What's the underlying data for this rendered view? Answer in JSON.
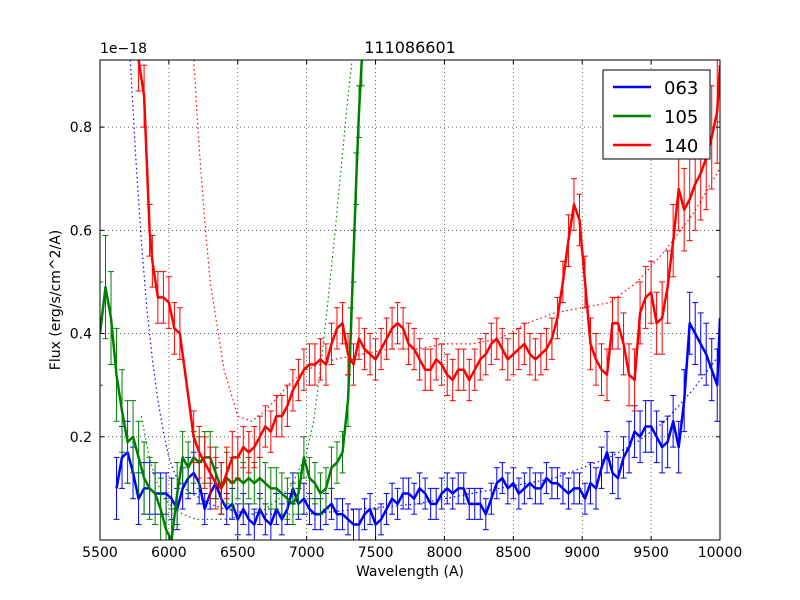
{
  "chart_data": {
    "type": "line",
    "title": "111086601",
    "xlabel": "Wavelength (A)",
    "ylabel": "Flux (erg/s/cm^2/A)",
    "offset_label": "1e−18",
    "xlim": [
      5500,
      10000
    ],
    "ylim": [
      0.0,
      0.93
    ],
    "x_ticks": [
      5500,
      6000,
      6500,
      7000,
      7500,
      8000,
      8500,
      9000,
      9500,
      10000
    ],
    "x_tick_labels": [
      "5500",
      "6000",
      "6500",
      "7000",
      "7500",
      "8000",
      "8500",
      "9000",
      "9500",
      "10000"
    ],
    "y_ticks": [
      0.2,
      0.4,
      0.6,
      0.8
    ],
    "y_tick_labels": [
      "0.2",
      "0.4",
      "0.6",
      "0.8"
    ],
    "grid": true,
    "legend_position": "top-right",
    "series": [
      {
        "name": "063",
        "color": "#0000ff",
        "x": [
          5620,
          5660,
          5700,
          5740,
          5780,
          5820,
          5860,
          5900,
          5940,
          5980,
          6020,
          6060,
          6100,
          6140,
          6180,
          6220,
          6260,
          6300,
          6340,
          6380,
          6420,
          6460,
          6500,
          6540,
          6580,
          6620,
          6660,
          6700,
          6740,
          6780,
          6820,
          6860,
          6900,
          6940,
          6980,
          7020,
          7060,
          7100,
          7140,
          7180,
          7220,
          7260,
          7300,
          7340,
          7380,
          7420,
          7460,
          7500,
          7540,
          7580,
          7620,
          7660,
          7700,
          7740,
          7780,
          7820,
          7860,
          7900,
          7940,
          7980,
          8020,
          8060,
          8100,
          8140,
          8180,
          8220,
          8260,
          8300,
          8340,
          8380,
          8420,
          8460,
          8500,
          8540,
          8580,
          8620,
          8660,
          8700,
          8740,
          8780,
          8820,
          8860,
          8900,
          8940,
          8980,
          9020,
          9060,
          9100,
          9140,
          9180,
          9220,
          9260,
          9300,
          9340,
          9380,
          9420,
          9460,
          9500,
          9540,
          9580,
          9620,
          9660,
          9700,
          9740,
          9780,
          9820,
          9860,
          9900,
          9940,
          9980,
          10000
        ],
        "y": [
          0.1,
          0.16,
          0.17,
          0.13,
          0.08,
          0.1,
          0.1,
          0.09,
          0.09,
          0.09,
          0.08,
          0.06,
          0.1,
          0.12,
          0.13,
          0.11,
          0.06,
          0.09,
          0.11,
          0.08,
          0.06,
          0.07,
          0.04,
          0.06,
          0.04,
          0.03,
          0.06,
          0.04,
          0.03,
          0.06,
          0.04,
          0.06,
          0.1,
          0.07,
          0.08,
          0.06,
          0.05,
          0.05,
          0.06,
          0.07,
          0.05,
          0.05,
          0.04,
          0.03,
          0.03,
          0.05,
          0.06,
          0.03,
          0.04,
          0.06,
          0.08,
          0.07,
          0.09,
          0.09,
          0.08,
          0.1,
          0.09,
          0.07,
          0.07,
          0.09,
          0.1,
          0.09,
          0.1,
          0.1,
          0.07,
          0.07,
          0.07,
          0.05,
          0.08,
          0.11,
          0.12,
          0.1,
          0.11,
          0.09,
          0.1,
          0.11,
          0.1,
          0.1,
          0.12,
          0.11,
          0.11,
          0.1,
          0.09,
          0.1,
          0.1,
          0.08,
          0.11,
          0.1,
          0.14,
          0.17,
          0.13,
          0.12,
          0.16,
          0.18,
          0.21,
          0.2,
          0.22,
          0.22,
          0.2,
          0.18,
          0.19,
          0.23,
          0.18,
          0.27,
          0.42,
          0.4,
          0.38,
          0.36,
          0.33,
          0.3,
          0.43
        ],
        "err": [
          0.06,
          0.06,
          0.06,
          0.05,
          0.05,
          0.05,
          0.05,
          0.04,
          0.04,
          0.04,
          0.04,
          0.04,
          0.04,
          0.04,
          0.04,
          0.04,
          0.03,
          0.03,
          0.03,
          0.03,
          0.03,
          0.03,
          0.03,
          0.03,
          0.03,
          0.03,
          0.03,
          0.03,
          0.03,
          0.03,
          0.03,
          0.03,
          0.03,
          0.03,
          0.03,
          0.03,
          0.03,
          0.03,
          0.03,
          0.03,
          0.03,
          0.03,
          0.03,
          0.03,
          0.03,
          0.03,
          0.03,
          0.03,
          0.03,
          0.03,
          0.03,
          0.03,
          0.03,
          0.03,
          0.03,
          0.03,
          0.03,
          0.03,
          0.03,
          0.03,
          0.03,
          0.03,
          0.03,
          0.03,
          0.03,
          0.03,
          0.03,
          0.03,
          0.03,
          0.03,
          0.03,
          0.03,
          0.03,
          0.03,
          0.03,
          0.03,
          0.03,
          0.03,
          0.03,
          0.03,
          0.03,
          0.03,
          0.03,
          0.03,
          0.03,
          0.03,
          0.04,
          0.04,
          0.04,
          0.04,
          0.04,
          0.04,
          0.04,
          0.05,
          0.05,
          0.05,
          0.05,
          0.05,
          0.05,
          0.05,
          0.05,
          0.05,
          0.05,
          0.06,
          0.06,
          0.06,
          0.06,
          0.06,
          0.06,
          0.07,
          0.08
        ],
        "fit": {
          "x": [
            5720,
            5760,
            5800,
            5840,
            5880,
            5920,
            5960,
            6000,
            6040,
            6080,
            6120,
            6160,
            6200,
            6300,
            6400,
            6500,
            6600,
            6700,
            6800,
            7000,
            7200,
            7400,
            7600,
            7800,
            8000,
            8200,
            8400,
            8600,
            8800,
            9000,
            9200,
            9400,
            9600,
            9800,
            10000
          ],
          "y": [
            0.93,
            0.74,
            0.58,
            0.45,
            0.35,
            0.27,
            0.21,
            0.16,
            0.13,
            0.11,
            0.1,
            0.09,
            0.085,
            0.07,
            0.06,
            0.055,
            0.05,
            0.05,
            0.05,
            0.05,
            0.055,
            0.06,
            0.065,
            0.07,
            0.08,
            0.09,
            0.1,
            0.11,
            0.12,
            0.14,
            0.16,
            0.19,
            0.23,
            0.29,
            0.36
          ]
        }
      },
      {
        "name": "105",
        "color": "#008000",
        "x": [
          5500,
          5540,
          5580,
          5620,
          5660,
          5700,
          5740,
          5780,
          5820,
          5860,
          5900,
          5940,
          5980,
          6020,
          6060,
          6100,
          6140,
          6180,
          6220,
          6260,
          6300,
          6340,
          6380,
          6420,
          6460,
          6500,
          6540,
          6580,
          6620,
          6660,
          6700,
          6740,
          6780,
          6820,
          6860,
          6900,
          6940,
          6980,
          7020,
          7060,
          7100,
          7140,
          7180,
          7220,
          7260,
          7300,
          7320,
          7340,
          7360,
          7380,
          7400,
          7410
        ],
        "y": [
          0.4,
          0.49,
          0.43,
          0.32,
          0.25,
          0.19,
          0.2,
          0.16,
          0.12,
          0.1,
          0.09,
          0.06,
          0.02,
          0.0,
          0.09,
          0.16,
          0.14,
          0.16,
          0.15,
          0.16,
          0.16,
          0.13,
          0.1,
          0.12,
          0.11,
          0.12,
          0.11,
          0.12,
          0.11,
          0.12,
          0.11,
          0.1,
          0.1,
          0.09,
          0.08,
          0.07,
          0.09,
          0.16,
          0.12,
          0.11,
          0.09,
          0.1,
          0.14,
          0.15,
          0.17,
          0.27,
          0.4,
          0.55,
          0.7,
          0.83,
          0.93,
          0.99
        ],
        "err": [
          0.1,
          0.1,
          0.09,
          0.09,
          0.08,
          0.08,
          0.07,
          0.07,
          0.07,
          0.06,
          0.06,
          0.06,
          0.06,
          0.06,
          0.06,
          0.05,
          0.05,
          0.05,
          0.05,
          0.05,
          0.05,
          0.05,
          0.05,
          0.05,
          0.05,
          0.04,
          0.04,
          0.04,
          0.04,
          0.04,
          0.04,
          0.04,
          0.04,
          0.04,
          0.04,
          0.04,
          0.04,
          0.04,
          0.04,
          0.04,
          0.04,
          0.04,
          0.04,
          0.04,
          0.04,
          0.05,
          0.05,
          0.05,
          0.05,
          0.05,
          0.05,
          0.05
        ],
        "fit": {
          "x": [
            5800,
            5850,
            5900,
            5950,
            6000,
            6050,
            6100,
            6200,
            6300,
            6400,
            6500,
            6600,
            6700,
            6800,
            6900,
            7000,
            7050,
            7100,
            7150,
            7200,
            7250,
            7300,
            7330
          ],
          "y": [
            0.24,
            0.17,
            0.12,
            0.09,
            0.07,
            0.06,
            0.05,
            0.04,
            0.04,
            0.04,
            0.045,
            0.05,
            0.06,
            0.08,
            0.11,
            0.17,
            0.23,
            0.33,
            0.45,
            0.58,
            0.72,
            0.86,
            0.93
          ]
        }
      },
      {
        "name": "140",
        "color": "#ff0000",
        "x": [
          5780,
          5820,
          5860,
          5880,
          5920,
          5960,
          6000,
          6040,
          6080,
          6180,
          6220,
          6260,
          6300,
          6340,
          6380,
          6420,
          6460,
          6500,
          6540,
          6580,
          6620,
          6660,
          6700,
          6740,
          6780,
          6820,
          6860,
          6900,
          6940,
          6980,
          7020,
          7060,
          7100,
          7140,
          7180,
          7220,
          7260,
          7300,
          7340,
          7380,
          7420,
          7460,
          7500,
          7540,
          7580,
          7620,
          7660,
          7700,
          7740,
          7780,
          7820,
          7860,
          7900,
          7940,
          7980,
          8020,
          8060,
          8100,
          8140,
          8180,
          8220,
          8260,
          8300,
          8340,
          8380,
          8420,
          8460,
          8500,
          8540,
          8580,
          8620,
          8660,
          8700,
          8740,
          8780,
          8820,
          8860,
          8900,
          8940,
          8980,
          9020,
          9060,
          9100,
          9140,
          9180,
          9220,
          9260,
          9300,
          9340,
          9380,
          9420,
          9460,
          9500,
          9540,
          9580,
          9620,
          9660,
          9700,
          9740,
          9780,
          9820,
          9860,
          9900,
          9940,
          9980,
          10000
        ],
        "y": [
          0.93,
          0.86,
          0.6,
          0.54,
          0.47,
          0.47,
          0.46,
          0.41,
          0.4,
          0.2,
          0.17,
          0.15,
          0.13,
          0.11,
          0.1,
          0.13,
          0.16,
          0.16,
          0.18,
          0.17,
          0.18,
          0.2,
          0.22,
          0.21,
          0.24,
          0.24,
          0.26,
          0.29,
          0.31,
          0.33,
          0.34,
          0.34,
          0.35,
          0.34,
          0.38,
          0.41,
          0.42,
          0.36,
          0.34,
          0.39,
          0.37,
          0.36,
          0.35,
          0.37,
          0.39,
          0.41,
          0.42,
          0.41,
          0.38,
          0.37,
          0.35,
          0.33,
          0.33,
          0.35,
          0.34,
          0.32,
          0.31,
          0.33,
          0.33,
          0.31,
          0.33,
          0.35,
          0.36,
          0.38,
          0.39,
          0.37,
          0.35,
          0.36,
          0.37,
          0.38,
          0.36,
          0.35,
          0.36,
          0.37,
          0.39,
          0.43,
          0.5,
          0.58,
          0.65,
          0.62,
          0.5,
          0.38,
          0.35,
          0.33,
          0.32,
          0.42,
          0.42,
          0.38,
          0.32,
          0.31,
          0.44,
          0.47,
          0.48,
          0.42,
          0.43,
          0.49,
          0.58,
          0.68,
          0.64,
          0.66,
          0.69,
          0.71,
          0.74,
          0.78,
          0.83,
          0.92
        ],
        "err": [
          0.06,
          0.06,
          0.05,
          0.05,
          0.05,
          0.05,
          0.05,
          0.05,
          0.05,
          0.05,
          0.05,
          0.05,
          0.05,
          0.05,
          0.05,
          0.05,
          0.05,
          0.04,
          0.04,
          0.04,
          0.04,
          0.04,
          0.04,
          0.04,
          0.04,
          0.04,
          0.04,
          0.04,
          0.04,
          0.04,
          0.04,
          0.04,
          0.04,
          0.04,
          0.04,
          0.04,
          0.04,
          0.04,
          0.04,
          0.04,
          0.04,
          0.04,
          0.04,
          0.04,
          0.04,
          0.04,
          0.04,
          0.04,
          0.04,
          0.04,
          0.04,
          0.04,
          0.04,
          0.04,
          0.04,
          0.04,
          0.04,
          0.04,
          0.04,
          0.04,
          0.04,
          0.04,
          0.04,
          0.04,
          0.04,
          0.04,
          0.04,
          0.04,
          0.04,
          0.04,
          0.04,
          0.04,
          0.04,
          0.04,
          0.04,
          0.04,
          0.04,
          0.05,
          0.05,
          0.05,
          0.05,
          0.05,
          0.05,
          0.05,
          0.05,
          0.05,
          0.05,
          0.06,
          0.06,
          0.06,
          0.06,
          0.06,
          0.06,
          0.06,
          0.07,
          0.07,
          0.07,
          0.08,
          0.08,
          0.08,
          0.09,
          0.09,
          0.1,
          0.1,
          0.1,
          0.11
        ],
        "fit": {
          "x": [
            6180,
            6220,
            6260,
            6300,
            6400,
            6500,
            6600,
            6700,
            6800,
            6900,
            7000,
            7200,
            7400,
            7600,
            7800,
            8000,
            8200,
            8400,
            8600,
            8800,
            9000,
            9200,
            9400,
            9600,
            9800,
            10000
          ],
          "y": [
            0.93,
            0.76,
            0.62,
            0.5,
            0.33,
            0.24,
            0.23,
            0.25,
            0.28,
            0.31,
            0.33,
            0.35,
            0.36,
            0.37,
            0.37,
            0.38,
            0.38,
            0.39,
            0.42,
            0.44,
            0.45,
            0.46,
            0.5,
            0.56,
            0.63,
            0.72
          ]
        }
      }
    ]
  }
}
